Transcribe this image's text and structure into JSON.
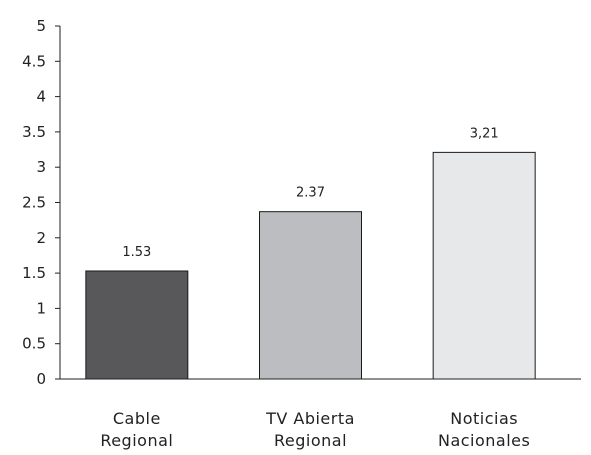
{
  "chart_data": {
    "type": "bar",
    "categories": [
      [
        "Cable",
        "Regional"
      ],
      [
        "TV Abierta",
        "Regional"
      ],
      [
        "Noticias",
        "Nacionales"
      ]
    ],
    "values": [
      1.53,
      2.37,
      3.21
    ],
    "data_labels": [
      "1.53",
      "2.37",
      "3,21"
    ],
    "bar_colors": [
      "#58585a",
      "#bcbdc0",
      "#e7e8e9"
    ],
    "bar_edge_color": "#1a1a1a",
    "ylim": [
      0,
      5
    ],
    "yticks": [
      0,
      0.5,
      1,
      1.5,
      2,
      2.5,
      3,
      3.5,
      4,
      4.5,
      5
    ],
    "ytick_labels": [
      "0",
      "0.5",
      "1",
      "1.5",
      "2",
      "2.5",
      "3",
      "3.5",
      "4",
      "4.5",
      "5"
    ],
    "title": "",
    "xlabel": "",
    "ylabel": "",
    "grid": false,
    "legend": "none"
  }
}
